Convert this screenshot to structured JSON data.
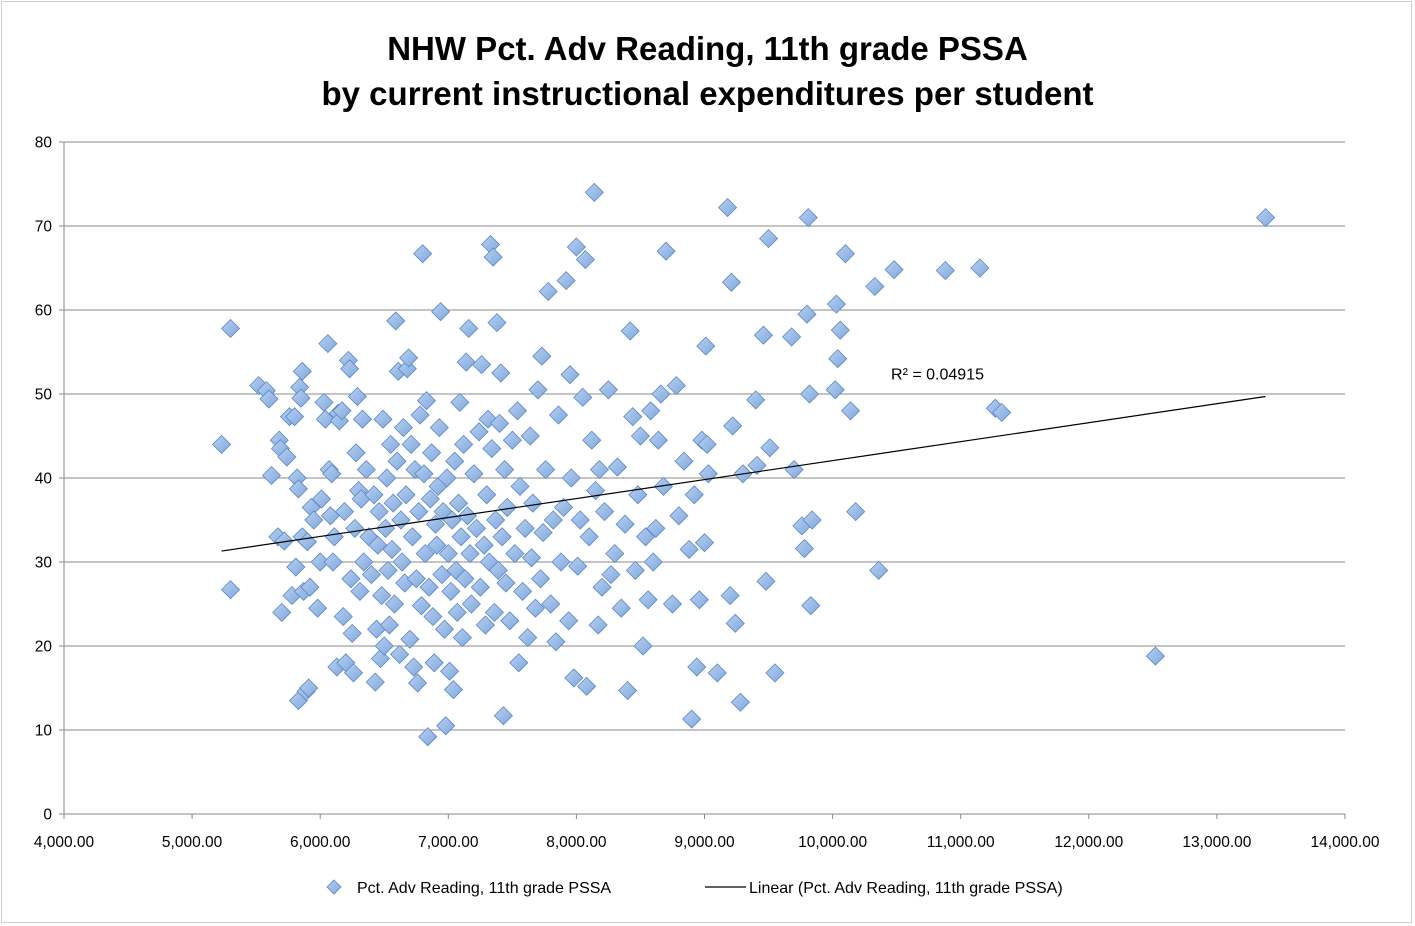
{
  "chart_data": {
    "type": "scatter",
    "title": [
      "NHW Pct. Adv Reading, 11th grade PSSA",
      "by current instructional expenditures per student"
    ],
    "xlabel": "",
    "ylabel": "",
    "xlim": [
      4000,
      14000
    ],
    "ylim": [
      0,
      80
    ],
    "x_ticks": [
      4000,
      5000,
      6000,
      7000,
      8000,
      9000,
      10000,
      11000,
      12000,
      13000,
      14000
    ],
    "x_tick_labels": [
      "4,000.00",
      "5,000.00",
      "6,000.00",
      "7,000.00",
      "8,000.00",
      "9,000.00",
      "10,000.00",
      "11,000.00",
      "12,000.00",
      "13,000.00",
      "14,000.00"
    ],
    "y_ticks": [
      0,
      10,
      20,
      30,
      40,
      50,
      60,
      70,
      80
    ],
    "y_tick_labels": [
      "0",
      "10",
      "20",
      "30",
      "40",
      "50",
      "60",
      "70",
      "80"
    ],
    "grid": "horizontal",
    "legend_position": "bottom",
    "series": [
      {
        "name": "Pct. Adv Reading, 11th grade PSSA",
        "marker": "diamond",
        "color": "#8db3e2",
        "edge_color": "#5b87c5",
        "points": [
          [
            5230,
            44.0
          ],
          [
            5300,
            57.8
          ],
          [
            5300,
            26.7
          ],
          [
            5520,
            51.0
          ],
          [
            5580,
            50.4
          ],
          [
            5600,
            49.4
          ],
          [
            5620,
            40.3
          ],
          [
            5670,
            33.0
          ],
          [
            5680,
            44.5
          ],
          [
            5690,
            43.5
          ],
          [
            5700,
            24.0
          ],
          [
            5720,
            32.5
          ],
          [
            5740,
            42.5
          ],
          [
            5760,
            47.3
          ],
          [
            5780,
            26.0
          ],
          [
            5800,
            47.3
          ],
          [
            5810,
            29.4
          ],
          [
            5820,
            40.0
          ],
          [
            5830,
            13.5
          ],
          [
            5830,
            38.7
          ],
          [
            5840,
            50.8
          ],
          [
            5850,
            49.5
          ],
          [
            5860,
            52.7
          ],
          [
            5860,
            33.0
          ],
          [
            5870,
            26.5
          ],
          [
            5890,
            14.6
          ],
          [
            5900,
            32.4
          ],
          [
            5910,
            15.0
          ],
          [
            5920,
            27.0
          ],
          [
            5930,
            36.5
          ],
          [
            5950,
            35.0
          ],
          [
            5980,
            24.5
          ],
          [
            6000,
            30.0
          ],
          [
            6010,
            37.5
          ],
          [
            6030,
            49.0
          ],
          [
            6040,
            47.0
          ],
          [
            6060,
            56.0
          ],
          [
            6070,
            41.0
          ],
          [
            6080,
            35.5
          ],
          [
            6090,
            40.5
          ],
          [
            6100,
            30.0
          ],
          [
            6110,
            33.0
          ],
          [
            6130,
            17.5
          ],
          [
            6140,
            47.7
          ],
          [
            6150,
            46.8
          ],
          [
            6170,
            48.0
          ],
          [
            6180,
            23.5
          ],
          [
            6190,
            36.0
          ],
          [
            6200,
            18.0
          ],
          [
            6220,
            54.0
          ],
          [
            6230,
            53.0
          ],
          [
            6240,
            28.0
          ],
          [
            6250,
            21.5
          ],
          [
            6260,
            16.8
          ],
          [
            6270,
            34.0
          ],
          [
            6280,
            43.0
          ],
          [
            6290,
            49.7
          ],
          [
            6300,
            38.5
          ],
          [
            6310,
            26.5
          ],
          [
            6320,
            37.5
          ],
          [
            6330,
            47.0
          ],
          [
            6340,
            30.0
          ],
          [
            6360,
            41.0
          ],
          [
            6380,
            33.0
          ],
          [
            6400,
            28.5
          ],
          [
            6420,
            38.0
          ],
          [
            6430,
            15.7
          ],
          [
            6440,
            22.0
          ],
          [
            6450,
            32.0
          ],
          [
            6460,
            36.0
          ],
          [
            6470,
            18.5
          ],
          [
            6480,
            26.0
          ],
          [
            6490,
            47.0
          ],
          [
            6500,
            20.0
          ],
          [
            6510,
            34.0
          ],
          [
            6520,
            40.0
          ],
          [
            6530,
            29.0
          ],
          [
            6540,
            22.5
          ],
          [
            6550,
            44.0
          ],
          [
            6560,
            31.5
          ],
          [
            6570,
            37.0
          ],
          [
            6580,
            25.0
          ],
          [
            6590,
            58.7
          ],
          [
            6600,
            42.0
          ],
          [
            6610,
            52.7
          ],
          [
            6620,
            19.0
          ],
          [
            6630,
            35.0
          ],
          [
            6640,
            30.0
          ],
          [
            6650,
            46.0
          ],
          [
            6660,
            27.5
          ],
          [
            6670,
            38.0
          ],
          [
            6680,
            53.0
          ],
          [
            6690,
            54.3
          ],
          [
            6700,
            20.8
          ],
          [
            6710,
            44.0
          ],
          [
            6720,
            33.0
          ],
          [
            6730,
            17.5
          ],
          [
            6740,
            41.0
          ],
          [
            6750,
            28.0
          ],
          [
            6760,
            15.6
          ],
          [
            6770,
            36.0
          ],
          [
            6780,
            47.5
          ],
          [
            6790,
            24.8
          ],
          [
            6800,
            66.7
          ],
          [
            6810,
            40.5
          ],
          [
            6820,
            31.0
          ],
          [
            6830,
            49.2
          ],
          [
            6840,
            9.2
          ],
          [
            6850,
            27.0
          ],
          [
            6860,
            37.5
          ],
          [
            6870,
            43.0
          ],
          [
            6880,
            23.5
          ],
          [
            6890,
            18.0
          ],
          [
            6900,
            34.5
          ],
          [
            6910,
            32.0
          ],
          [
            6920,
            39.0
          ],
          [
            6930,
            46.0
          ],
          [
            6940,
            59.8
          ],
          [
            6950,
            28.5
          ],
          [
            6960,
            36.0
          ],
          [
            6970,
            22.0
          ],
          [
            6980,
            10.5
          ],
          [
            6990,
            40.0
          ],
          [
            7000,
            31.0
          ],
          [
            7010,
            17.0
          ],
          [
            7020,
            26.5
          ],
          [
            7030,
            35.0
          ],
          [
            7040,
            14.8
          ],
          [
            7050,
            42.0
          ],
          [
            7060,
            29.0
          ],
          [
            7070,
            24.0
          ],
          [
            7080,
            37.0
          ],
          [
            7090,
            49.0
          ],
          [
            7100,
            33.0
          ],
          [
            7110,
            21.0
          ],
          [
            7120,
            44.0
          ],
          [
            7130,
            28.0
          ],
          [
            7140,
            53.8
          ],
          [
            7150,
            35.5
          ],
          [
            7160,
            57.8
          ],
          [
            7170,
            31.0
          ],
          [
            7180,
            25.0
          ],
          [
            7200,
            40.5
          ],
          [
            7220,
            34.0
          ],
          [
            7240,
            45.5
          ],
          [
            7250,
            27.0
          ],
          [
            7260,
            53.5
          ],
          [
            7280,
            32.0
          ],
          [
            7290,
            22.5
          ],
          [
            7300,
            38.0
          ],
          [
            7310,
            47.0
          ],
          [
            7320,
            30.0
          ],
          [
            7330,
            67.8
          ],
          [
            7340,
            43.5
          ],
          [
            7350,
            66.3
          ],
          [
            7360,
            24.0
          ],
          [
            7370,
            35.0
          ],
          [
            7380,
            58.5
          ],
          [
            7390,
            29.0
          ],
          [
            7400,
            46.5
          ],
          [
            7410,
            52.5
          ],
          [
            7420,
            33.0
          ],
          [
            7430,
            11.7
          ],
          [
            7440,
            41.0
          ],
          [
            7450,
            27.5
          ],
          [
            7460,
            36.5
          ],
          [
            7480,
            23.0
          ],
          [
            7500,
            44.5
          ],
          [
            7520,
            31.0
          ],
          [
            7540,
            48.0
          ],
          [
            7550,
            18.0
          ],
          [
            7560,
            39.0
          ],
          [
            7580,
            26.5
          ],
          [
            7600,
            34.0
          ],
          [
            7620,
            21.0
          ],
          [
            7640,
            45.0
          ],
          [
            7650,
            30.5
          ],
          [
            7660,
            37.0
          ],
          [
            7680,
            24.5
          ],
          [
            7700,
            50.5
          ],
          [
            7720,
            28.0
          ],
          [
            7730,
            54.5
          ],
          [
            7740,
            33.5
          ],
          [
            7760,
            41.0
          ],
          [
            7780,
            62.2
          ],
          [
            7800,
            25.0
          ],
          [
            7820,
            35.0
          ],
          [
            7840,
            20.5
          ],
          [
            7860,
            47.5
          ],
          [
            7880,
            30.0
          ],
          [
            7900,
            36.5
          ],
          [
            7920,
            63.5
          ],
          [
            7940,
            23.0
          ],
          [
            7950,
            52.3
          ],
          [
            7960,
            40.0
          ],
          [
            7980,
            16.2
          ],
          [
            8000,
            67.5
          ],
          [
            8010,
            29.5
          ],
          [
            8030,
            35.0
          ],
          [
            8050,
            49.6
          ],
          [
            8070,
            66.0
          ],
          [
            8080,
            15.2
          ],
          [
            8100,
            33.0
          ],
          [
            8120,
            44.5
          ],
          [
            8140,
            74.0
          ],
          [
            8150,
            38.5
          ],
          [
            8170,
            22.5
          ],
          [
            8180,
            41.0
          ],
          [
            8200,
            27.0
          ],
          [
            8220,
            36.0
          ],
          [
            8250,
            50.5
          ],
          [
            8270,
            28.5
          ],
          [
            8300,
            31.0
          ],
          [
            8320,
            41.3
          ],
          [
            8350,
            24.5
          ],
          [
            8380,
            34.5
          ],
          [
            8400,
            14.7
          ],
          [
            8420,
            57.5
          ],
          [
            8440,
            47.3
          ],
          [
            8460,
            29.0
          ],
          [
            8480,
            38.0
          ],
          [
            8500,
            45.0
          ],
          [
            8520,
            20.0
          ],
          [
            8540,
            33.0
          ],
          [
            8560,
            25.5
          ],
          [
            8580,
            48.0
          ],
          [
            8600,
            30.0
          ],
          [
            8620,
            34.0
          ],
          [
            8640,
            44.5
          ],
          [
            8660,
            50.0
          ],
          [
            8680,
            39.0
          ],
          [
            8700,
            67.0
          ],
          [
            8750,
            25.0
          ],
          [
            8780,
            51.0
          ],
          [
            8800,
            35.5
          ],
          [
            8840,
            42.0
          ],
          [
            8880,
            31.5
          ],
          [
            8900,
            11.3
          ],
          [
            8920,
            38.0
          ],
          [
            8940,
            17.5
          ],
          [
            8960,
            25.5
          ],
          [
            8980,
            44.5
          ],
          [
            9000,
            32.3
          ],
          [
            9010,
            55.7
          ],
          [
            9020,
            44.0
          ],
          [
            9030,
            40.5
          ],
          [
            9100,
            16.8
          ],
          [
            9180,
            72.2
          ],
          [
            9200,
            26.0
          ],
          [
            9210,
            63.3
          ],
          [
            9220,
            46.2
          ],
          [
            9240,
            22.7
          ],
          [
            9280,
            13.3
          ],
          [
            9300,
            40.5
          ],
          [
            9400,
            49.3
          ],
          [
            9410,
            41.5
          ],
          [
            9460,
            57.0
          ],
          [
            9480,
            27.7
          ],
          [
            9500,
            68.5
          ],
          [
            9510,
            43.6
          ],
          [
            9550,
            16.8
          ],
          [
            9680,
            56.8
          ],
          [
            9700,
            41.0
          ],
          [
            9760,
            34.3
          ],
          [
            9780,
            31.6
          ],
          [
            9800,
            59.5
          ],
          [
            9810,
            71.0
          ],
          [
            9820,
            50.0
          ],
          [
            9830,
            24.8
          ],
          [
            9840,
            35.0
          ],
          [
            10020,
            50.5
          ],
          [
            10030,
            60.7
          ],
          [
            10040,
            54.2
          ],
          [
            10060,
            57.6
          ],
          [
            10100,
            66.7
          ],
          [
            10140,
            48.0
          ],
          [
            10180,
            36.0
          ],
          [
            10330,
            62.8
          ],
          [
            10360,
            29.0
          ],
          [
            10480,
            64.8
          ],
          [
            10880,
            64.7
          ],
          [
            11150,
            65.0
          ],
          [
            11270,
            48.3
          ],
          [
            11320,
            47.8
          ],
          [
            12520,
            18.8
          ],
          [
            13380,
            71.0
          ]
        ]
      },
      {
        "name": "Linear (Pct. Adv Reading, 11th grade PSSA)",
        "type": "line",
        "color": "#000000",
        "x": [
          5230,
          13380
        ],
        "y": [
          31.3,
          49.7
        ]
      }
    ],
    "annotations": [
      {
        "text": "R² = 0.04915",
        "x": 10300,
        "y": 52.3
      }
    ]
  }
}
